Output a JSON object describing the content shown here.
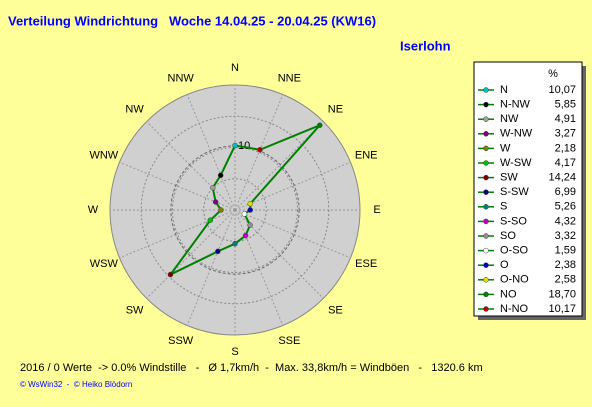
{
  "chart_data": {
    "type": "radar",
    "title": "Verteilung Windrichtung   Woche 14.04.25 - 20.04.25 (KW16)",
    "subtitle": "Iserlohn",
    "categories": [
      "N",
      "NNE",
      "NE",
      "ENE",
      "E",
      "ESE",
      "SE",
      "SSE",
      "S",
      "SSW",
      "SW",
      "WSW",
      "W",
      "WNW",
      "NW",
      "NNW"
    ],
    "values": [
      10.07,
      10.17,
      18.7,
      2.58,
      2.38,
      1.59,
      3.32,
      4.32,
      5.26,
      6.99,
      14.24,
      4.17,
      2.18,
      3.27,
      4.91,
      5.85
    ],
    "value_labels": [
      "10,07",
      "10,17",
      "18,70",
      "2,58",
      "2,38",
      "1,59",
      "3,32",
      "4,32",
      "5,26",
      "6,99",
      "14,24",
      "4,17",
      "2,18",
      "3,27",
      "4,91",
      "5,85"
    ],
    "marker_colors": [
      "#00c0c0",
      "#c00000",
      "#008000",
      "#e0e000",
      "#0000c0",
      "#ffffff",
      "#909090",
      "#c000c0",
      "#008080",
      "#000080",
      "#800000",
      "#00c000",
      "#808000",
      "#800080",
      "#a0a0a0",
      "#000000"
    ],
    "color": "#008000",
    "legend_names": [
      "N",
      "N-NW",
      "NW",
      "W-NW",
      "W",
      "W-SW",
      "SW",
      "S-SW",
      "S",
      "S-SO",
      "SO",
      "O-SO",
      "O",
      "O-NO",
      "NO",
      "N-NO"
    ],
    "legend_unit": "%",
    "rlim": [
      0,
      19.5
    ],
    "rticks": [
      10
    ],
    "footer": "2016 / 0 Werte  -> 0.0% Windstille   -   Ø 1,7km/h  -  Max. 33,8km/h = Windböen   -   1320.6 km",
    "credit": "© WsWin32  -  © Heiko Blödorn"
  }
}
